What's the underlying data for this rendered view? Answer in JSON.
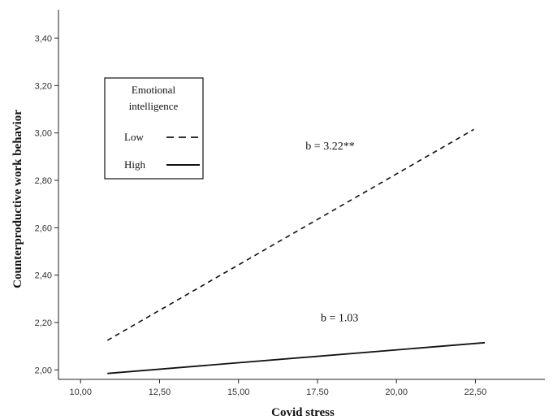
{
  "chart_data": {
    "type": "line",
    "xlabel": "Covid stress",
    "ylabel": "Counterproductive work behavior",
    "xlim": [
      9.3,
      24.7
    ],
    "ylim": [
      1.96,
      3.52
    ],
    "x_ticks": [
      "10,00",
      "12,50",
      "15,00",
      "17,50",
      "20,00",
      "22,50"
    ],
    "x_tick_values": [
      10,
      12.5,
      15,
      17.5,
      20,
      22.5
    ],
    "y_ticks": [
      "2,00",
      "2,20",
      "2,40",
      "2,60",
      "2,80",
      "3,00",
      "3,20",
      "3,40"
    ],
    "y_tick_values": [
      2.0,
      2.2,
      2.4,
      2.6,
      2.8,
      3.0,
      3.2,
      3.4
    ],
    "grid": false,
    "legend": {
      "title": "Emotional intelligence",
      "title_lines": [
        "Emotional",
        "intelligence"
      ],
      "placement": "top-left",
      "items": [
        {
          "label": "Low",
          "style": "dashed"
        },
        {
          "label": "High",
          "style": "solid"
        }
      ]
    },
    "series": [
      {
        "name": "Low",
        "style": "dashed",
        "color": "#111111",
        "x": [
          10.85,
          22.45
        ],
        "y": [
          2.125,
          3.015
        ]
      },
      {
        "name": "High",
        "style": "solid",
        "color": "#111111",
        "x": [
          10.85,
          22.8
        ],
        "y": [
          1.985,
          2.115
        ]
      }
    ],
    "annotations": [
      {
        "text": "b = 3.22**",
        "x": 17.9,
        "y": 2.93
      },
      {
        "text": "b = 1.03",
        "x": 18.2,
        "y": 2.205
      }
    ]
  }
}
